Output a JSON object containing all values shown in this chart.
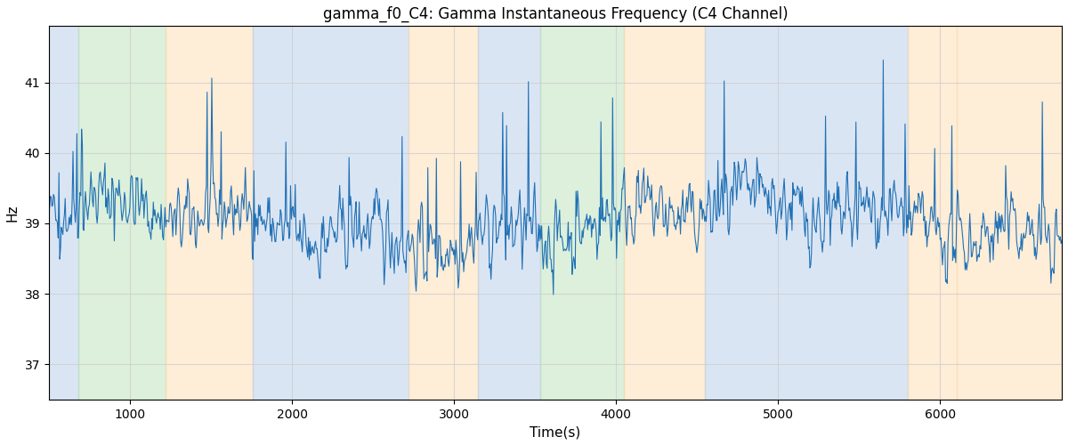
{
  "title": "gamma_f0_C4: Gamma Instantaneous Frequency (C4 Channel)",
  "xlabel": "Time(s)",
  "ylabel": "Hz",
  "line_color": "#2171b5",
  "line_width": 0.8,
  "background_color": "#ffffff",
  "xlim": [
    500,
    6750
  ],
  "ylim": [
    36.5,
    41.8
  ],
  "yticks": [
    37,
    38,
    39,
    40,
    41
  ],
  "xticks": [
    1000,
    2000,
    3000,
    4000,
    5000,
    6000
  ],
  "figsize": [
    12,
    5
  ],
  "dpi": 100,
  "grid": true,
  "grid_color": "#cccccc",
  "grid_alpha": 0.7,
  "mean_freq": 39.0,
  "noise_amplitude": 0.45,
  "n_points": 1300,
  "seed": 42,
  "bg_regions": [
    {
      "xmin": 500,
      "xmax": 680,
      "color": "#aec6e8",
      "alpha": 0.45
    },
    {
      "xmin": 680,
      "xmax": 1220,
      "color": "#b2dfb0",
      "alpha": 0.45
    },
    {
      "xmin": 1220,
      "xmax": 1760,
      "color": "#fdd9a8",
      "alpha": 0.45
    },
    {
      "xmin": 1760,
      "xmax": 2720,
      "color": "#aec6e8",
      "alpha": 0.45
    },
    {
      "xmin": 2720,
      "xmax": 3150,
      "color": "#fdd9a8",
      "alpha": 0.45
    },
    {
      "xmin": 3150,
      "xmax": 3530,
      "color": "#aec6e8",
      "alpha": 0.45
    },
    {
      "xmin": 3530,
      "xmax": 4050,
      "color": "#b2dfb0",
      "alpha": 0.45
    },
    {
      "xmin": 4050,
      "xmax": 4550,
      "color": "#fdd9a8",
      "alpha": 0.45
    },
    {
      "xmin": 4550,
      "xmax": 5800,
      "color": "#aec6e8",
      "alpha": 0.45
    },
    {
      "xmin": 5800,
      "xmax": 6100,
      "color": "#fdd9a8",
      "alpha": 0.45
    },
    {
      "xmin": 6100,
      "xmax": 6750,
      "color": "#fdd9a8",
      "alpha": 0.45
    }
  ]
}
